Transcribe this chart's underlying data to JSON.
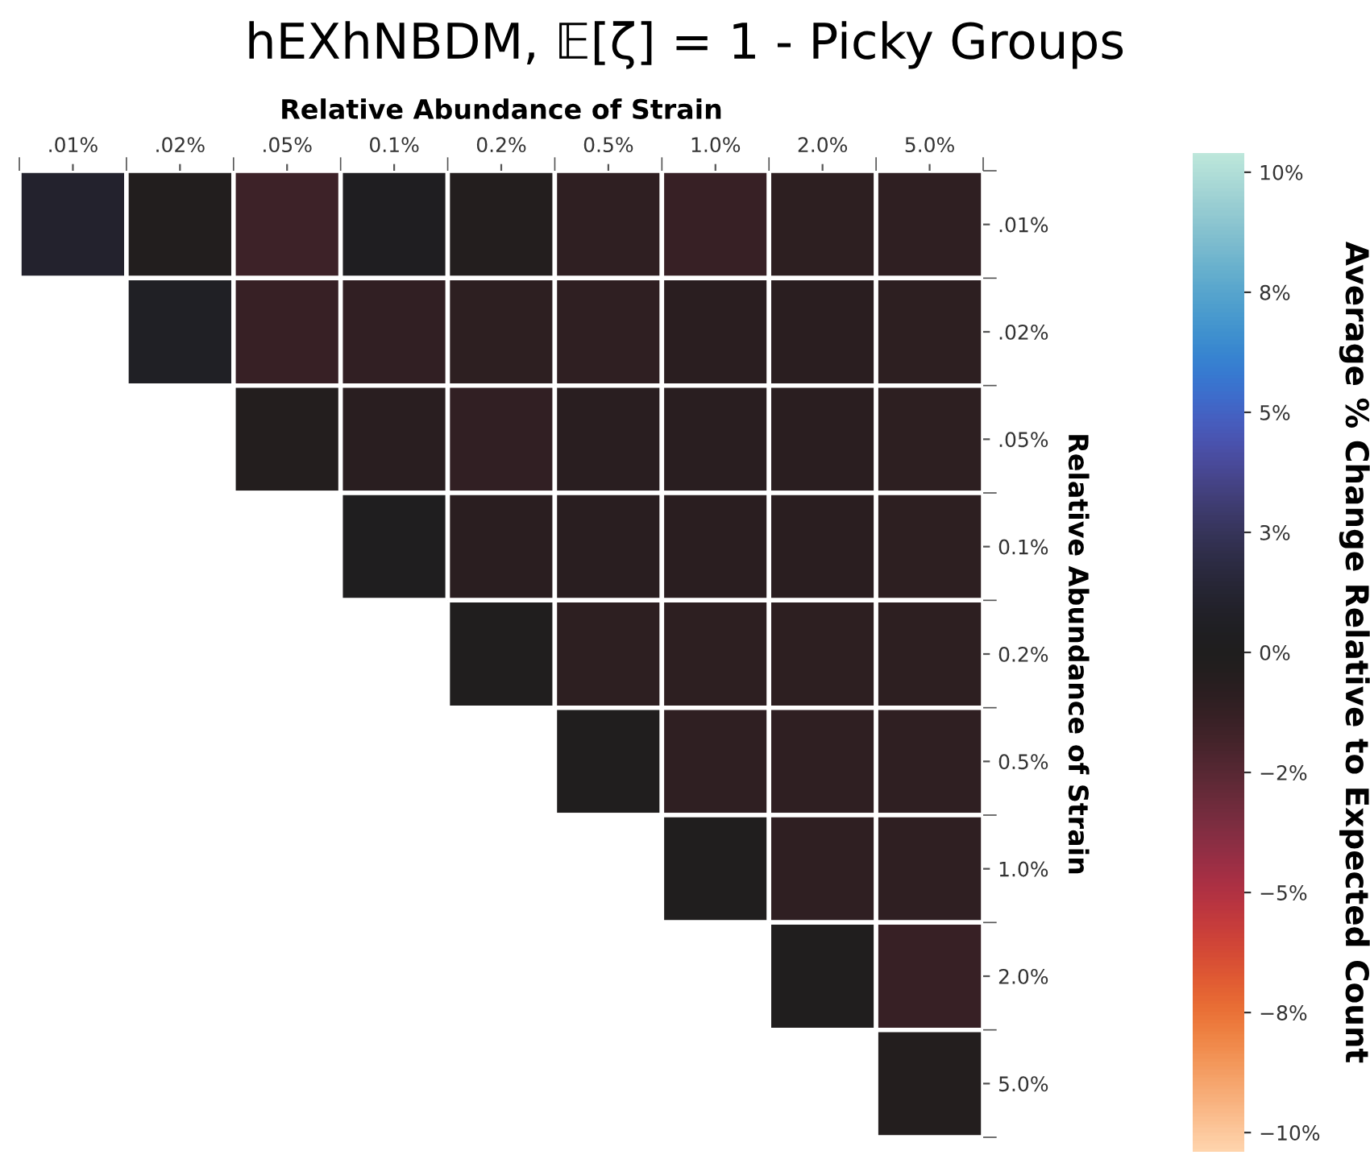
{
  "chart_data": {
    "type": "heatmap",
    "title": "hEXhNBDM, 𝔼[ζ] = 1 - Picky Groups",
    "xlabel": "Relative Abundance of Strain",
    "ylabel": "Relative Abundance of Strain",
    "clabel": "Average % Change Relative to Expected Count",
    "categories": [
      ".01%",
      ".02%",
      ".05%",
      "0.1%",
      "0.2%",
      "0.5%",
      "1.0%",
      "2.0%",
      "5.0%"
    ],
    "y_categories": [
      ".01%",
      ".02%",
      ".05%",
      "0.1%",
      "0.2%",
      "0.5%",
      "1.0%",
      "2.0%",
      "5.0%"
    ],
    "cells": [
      [
        1.0,
        -0.3,
        -1.6,
        0.3,
        -0.4,
        -1.0,
        -1.3,
        -0.9,
        -1.0
      ],
      [
        null,
        0.6,
        -1.3,
        -1.1,
        -0.9,
        -1.0,
        -0.8,
        -0.8,
        -0.9
      ],
      [
        null,
        null,
        -0.4,
        -0.7,
        -1.1,
        -0.7,
        -0.7,
        -0.8,
        -0.9
      ],
      [
        null,
        null,
        null,
        0.1,
        -0.8,
        -0.7,
        -0.8,
        -0.8,
        -0.9
      ],
      [
        null,
        null,
        null,
        null,
        -0.1,
        -0.9,
        -0.9,
        -0.9,
        -0.9
      ],
      [
        null,
        null,
        null,
        null,
        null,
        -0.1,
        -1.0,
        -1.0,
        -1.0
      ],
      [
        null,
        null,
        null,
        null,
        null,
        null,
        -0.1,
        -1.0,
        -1.0
      ],
      [
        null,
        null,
        null,
        null,
        null,
        null,
        null,
        -0.1,
        -1.3
      ],
      [
        null,
        null,
        null,
        null,
        null,
        null,
        null,
        null,
        -0.4
      ]
    ],
    "clim": [
      -10.4,
      10.4
    ],
    "cticks": [
      {
        "value": 10,
        "label": "10%"
      },
      {
        "value": 7.5,
        "label": "8%"
      },
      {
        "value": 5,
        "label": "5%"
      },
      {
        "value": 2.5,
        "label": "3%"
      },
      {
        "value": 0,
        "label": "0%"
      },
      {
        "value": -2.5,
        "label": "−2%"
      },
      {
        "value": -5,
        "label": "−5%"
      },
      {
        "value": -7.5,
        "label": "−8%"
      },
      {
        "value": -10,
        "label": "−10%"
      }
    ]
  }
}
